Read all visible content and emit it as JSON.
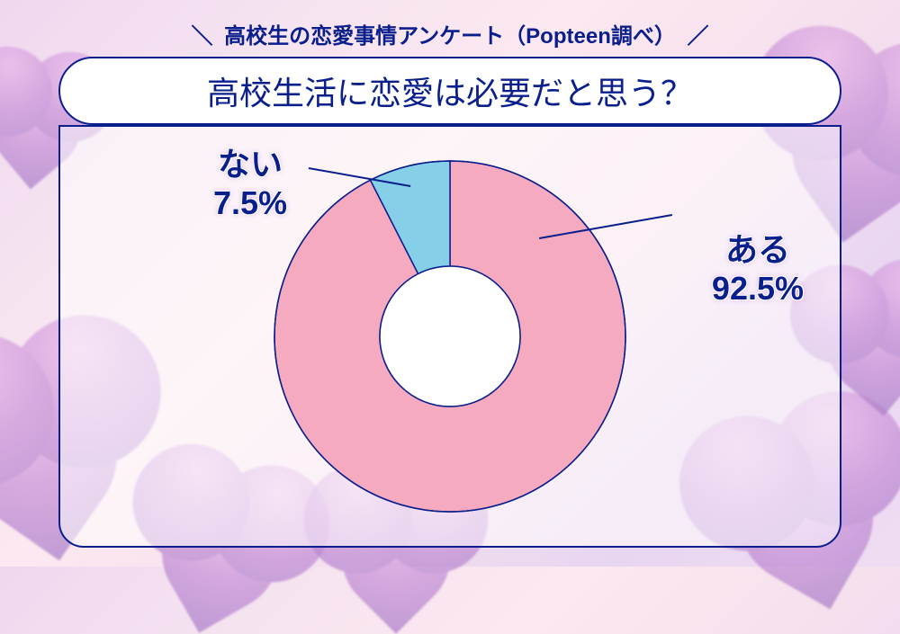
{
  "header": {
    "slash_left": "＼",
    "text": "高校生の恋愛事情アンケート（Popteen調べ）",
    "slash_right": "／"
  },
  "title": "高校生活に恋愛は必要だと思う？",
  "colors": {
    "accent": "#0a1e8c",
    "yes_fill": "#f6aac0",
    "no_fill": "#86cfe8",
    "stroke": "#0a1e8c",
    "label_text": "#0a1e8c"
  },
  "chart": {
    "type": "donut",
    "outer_radius": 195,
    "inner_radius": 78,
    "stroke_width": 1.5,
    "center_fill": "#ffffff",
    "slices": [
      {
        "key": "yes",
        "value": 92.5,
        "start_deg": 0,
        "end_deg": 333,
        "color": "#f6aac0"
      },
      {
        "key": "no",
        "value": 7.5,
        "start_deg": 333,
        "end_deg": 360,
        "color": "#86cfe8"
      }
    ]
  },
  "labels": {
    "yes": {
      "line1": "ある",
      "line2": "92.5%"
    },
    "no": {
      "line1": "ない",
      "line2": "7.5%"
    }
  }
}
